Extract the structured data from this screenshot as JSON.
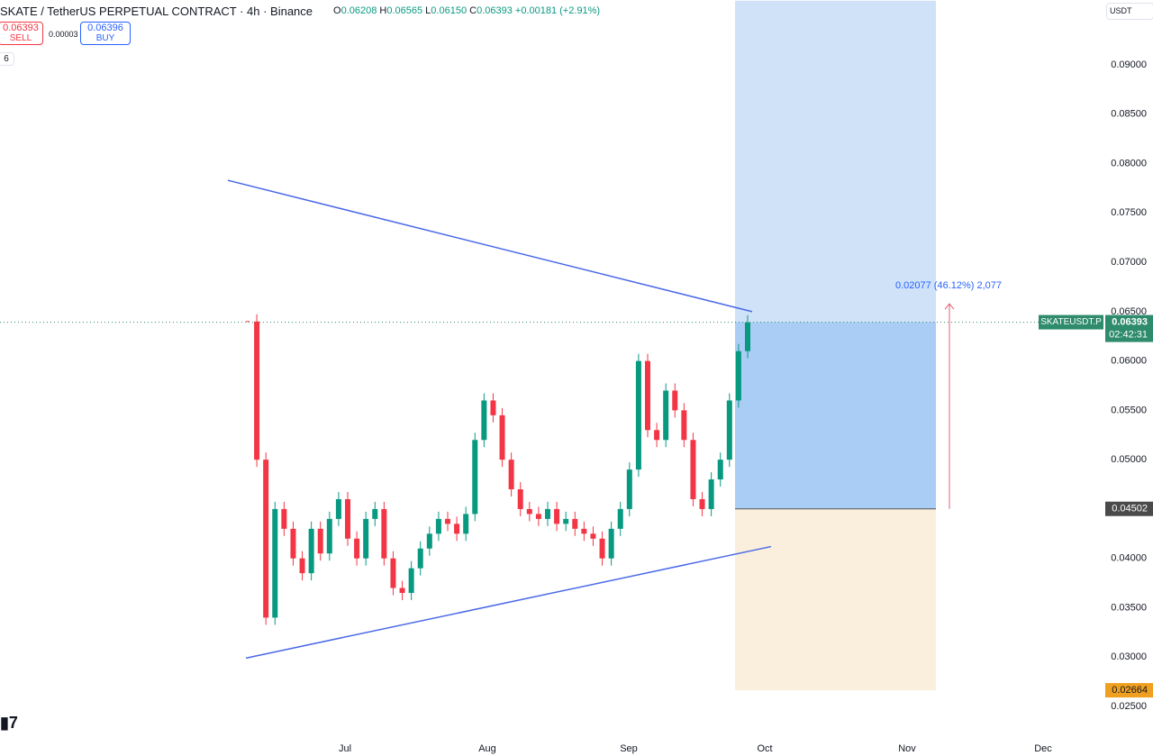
{
  "header": {
    "symbol": "SKATE / TetherUS PERPETUAL CONTRACT · 4h · Binance",
    "ohlc": [
      {
        "label": "O",
        "value": "0.06208"
      },
      {
        "label": "H",
        "value": "0.06565"
      },
      {
        "label": "L",
        "value": "0.06150"
      },
      {
        "label": "C",
        "value": "0.06393"
      }
    ],
    "change": "+0.00181 (+2.91%)",
    "sell": {
      "price": "0.06393",
      "label": "SELL"
    },
    "spread": "0.00003",
    "buy": {
      "price": "0.06396",
      "label": "BUY"
    },
    "indicators": "6",
    "currency": "USDT"
  },
  "chart_data": {
    "type": "candlestick",
    "closes": [
      0.064,
      0.05,
      0.034,
      0.045,
      0.043,
      0.04,
      0.0385,
      0.043,
      0.0405,
      0.044,
      0.046,
      0.042,
      0.04,
      0.044,
      0.045,
      0.04,
      0.037,
      0.0365,
      0.039,
      0.041,
      0.0425,
      0.044,
      0.0435,
      0.0425,
      0.0445,
      0.052,
      0.056,
      0.0545,
      0.05,
      0.047,
      0.045,
      0.0445,
      0.044,
      0.045,
      0.0435,
      0.044,
      0.043,
      0.0425,
      0.042,
      0.04,
      0.043,
      0.045,
      0.049,
      0.06,
      0.053,
      0.052,
      0.057,
      0.055,
      0.052,
      0.046,
      0.045,
      0.048,
      0.05,
      0.056,
      0.061,
      0.0639
    ],
    "up_color": "#089981",
    "down_color": "#f23645",
    "categories": [
      "Jul",
      "Aug",
      "Sep",
      "Oct",
      "Nov",
      "Dec"
    ],
    "ylim": [
      0.0225,
      0.0965
    ],
    "yticks": [
      {
        "value": 0.09,
        "label": "0.09000"
      },
      {
        "value": 0.085,
        "label": "0.08500"
      },
      {
        "value": 0.08,
        "label": "0.08000"
      },
      {
        "value": 0.075,
        "label": "0.07500"
      },
      {
        "value": 0.07,
        "label": "0.07000"
      },
      {
        "value": 0.065,
        "label": "0.06500"
      },
      {
        "value": 0.06,
        "label": "0.06000"
      },
      {
        "value": 0.055,
        "label": "0.05500"
      },
      {
        "value": 0.05,
        "label": "0.05000"
      },
      {
        "value": 0.045,
        "label": "0.04500"
      },
      {
        "value": 0.04,
        "label": "0.04000"
      },
      {
        "value": 0.035,
        "label": "0.03500"
      },
      {
        "value": 0.03,
        "label": "0.03000"
      },
      {
        "value": 0.025,
        "label": "0.02500"
      }
    ],
    "trendlines": [
      {
        "start": 0.0783,
        "end": 0.065
      },
      {
        "start": 0.0299,
        "end": 0.0412
      }
    ],
    "trend_color": "#4a69e8",
    "symbol_tag": "SKATEUSDT.P",
    "current": {
      "value": 0.06393,
      "label": "0.06393"
    },
    "countdown": "02:42:31",
    "entry": {
      "value": 0.04502,
      "label": "0.04502"
    },
    "stop": {
      "value": 0.02664,
      "label": "0.02664"
    },
    "target_move": {
      "value": 0.02077,
      "label": "0.02077 (46.12%) 2,077"
    }
  }
}
